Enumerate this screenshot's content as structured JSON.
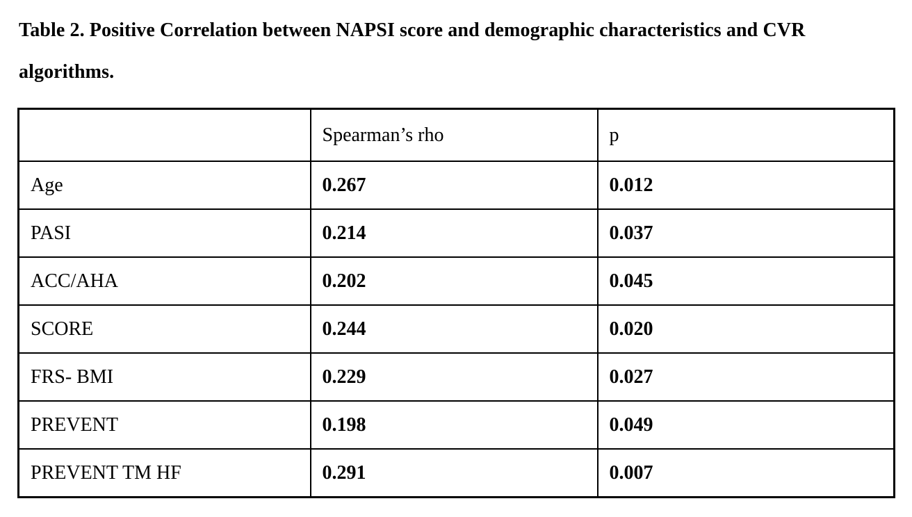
{
  "title": "Table 2. Positive Correlation between NAPSI score and demographic characteristics and CVR algorithms.",
  "table": {
    "columns": [
      "",
      "Spearman’s rho",
      "p"
    ],
    "rows": [
      {
        "label": "Age",
        "rho": "0.267",
        "p": "0.012"
      },
      {
        "label": "PASI",
        "rho": "0.214",
        "p": "0.037"
      },
      {
        "label": "ACC/AHA",
        "rho": "0.202",
        "p": "0.045"
      },
      {
        "label": "SCORE",
        "rho": "0.244",
        "p": "0.020"
      },
      {
        "label": "FRS- BMI",
        "rho": "0.229",
        "p": "0.027"
      },
      {
        "label": "PREVENT",
        "rho": "0.198",
        "p": "0.049"
      },
      {
        "label": "PREVENT TM HF",
        "rho": "0.291",
        "p": "0.007"
      }
    ]
  }
}
